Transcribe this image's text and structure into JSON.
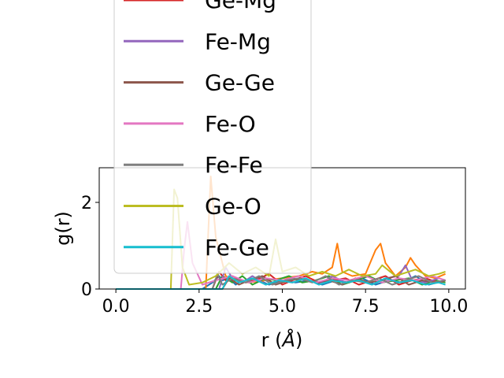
{
  "chart_data": {
    "type": "line",
    "xlabel": "r (",
    "xlabel_unit": "Å",
    "xlabel_close": ")",
    "ylabel": "g(r)",
    "xlim": [
      -0.5,
      10.5
    ],
    "ylim": [
      0,
      2.8
    ],
    "x_ticks": [
      0.0,
      2.5,
      5.0,
      7.5,
      10.0
    ],
    "x_tick_labels": [
      "0.0",
      "2.5",
      "5.0",
      "7.5",
      "10.0"
    ],
    "y_ticks": [
      0,
      2
    ],
    "y_tick_labels": [
      "0",
      "2"
    ],
    "grid": false,
    "legend_position": "upper-left, extending above plot",
    "series": [
      {
        "name": "",
        "color": "#1f77b4",
        "x": [
          0,
          2.6,
          2.9,
          3.1,
          3.2,
          3.4,
          3.6,
          3.8,
          4.0,
          4.3,
          4.6,
          5.0,
          5.4,
          5.8,
          6.2,
          6.6,
          7.0,
          7.4,
          7.8,
          8.2,
          8.6,
          9.0,
          9.4,
          9.9
        ],
        "y": [
          0,
          0,
          0.15,
          0.3,
          0.2,
          0.25,
          0.1,
          0.2,
          0.15,
          0.2,
          0.1,
          0.2,
          0.15,
          0.2,
          0.1,
          0.2,
          0.15,
          0.25,
          0.1,
          0.2,
          0.15,
          0.3,
          0.1,
          0.2
        ]
      },
      {
        "name": "",
        "color": "#ff7f0e",
        "x": [
          0,
          2.7,
          2.85,
          3.0,
          3.3,
          3.6,
          4.0,
          4.5,
          5.0,
          5.5,
          5.9,
          6.2,
          6.5,
          6.65,
          6.8,
          7.1,
          7.5,
          7.8,
          7.95,
          8.1,
          8.4,
          8.7,
          8.85,
          9.0,
          9.3,
          9.6,
          9.9
        ],
        "y": [
          0,
          0,
          2.6,
          1.2,
          0.3,
          0.2,
          0.15,
          0.2,
          0.25,
          0.3,
          0.4,
          0.35,
          0.5,
          1.05,
          0.4,
          0.3,
          0.35,
          0.9,
          1.05,
          0.6,
          0.3,
          0.5,
          0.72,
          0.55,
          0.3,
          0.25,
          0.35
        ]
      },
      {
        "name": "",
        "color": "#2ca02c",
        "x": [
          0,
          3.0,
          3.2,
          3.5,
          3.8,
          4.1,
          4.5,
          4.8,
          5.2,
          5.6,
          6.0,
          6.4,
          6.8,
          7.2,
          7.6,
          8.0,
          8.4,
          8.8,
          9.2,
          9.6,
          9.9
        ],
        "y": [
          0,
          0,
          0.3,
          0.15,
          0.3,
          0.1,
          0.25,
          0.2,
          0.3,
          0.15,
          0.2,
          0.3,
          0.1,
          0.2,
          0.3,
          0.15,
          0.2,
          0.25,
          0.1,
          0.2,
          0.15
        ]
      },
      {
        "name": "Ge-Mg",
        "color": "#d62728",
        "x": [
          0,
          2.9,
          3.1,
          3.3,
          3.5,
          3.9,
          4.2,
          4.6,
          5.0,
          5.3,
          5.7,
          6.1,
          6.5,
          6.9,
          7.3,
          7.7,
          8.1,
          8.5,
          8.9,
          9.3,
          9.7,
          9.9
        ],
        "y": [
          0,
          0,
          0.4,
          0.2,
          0.3,
          0.15,
          0.2,
          0.35,
          0.1,
          0.2,
          0.3,
          0.15,
          0.2,
          0.25,
          0.1,
          0.2,
          0.3,
          0.1,
          0.2,
          0.25,
          0.15,
          0.2
        ]
      },
      {
        "name": "Fe-Mg",
        "color": "#9467bd",
        "x": [
          0,
          3.1,
          3.3,
          3.5,
          3.8,
          4.1,
          4.5,
          4.9,
          5.3,
          5.7,
          6.1,
          6.5,
          6.9,
          7.3,
          7.7,
          8.1,
          8.5,
          8.7,
          8.9,
          9.3,
          9.7,
          9.9
        ],
        "y": [
          0,
          0,
          0.5,
          0.25,
          0.15,
          0.3,
          0.1,
          0.2,
          0.15,
          0.25,
          0.1,
          0.3,
          0.15,
          0.2,
          0.1,
          0.25,
          0.3,
          0.55,
          0.2,
          0.15,
          0.25,
          0.2
        ]
      },
      {
        "name": "Ge-Ge",
        "color": "#8c564b",
        "x": [
          0,
          3.2,
          3.4,
          3.7,
          4.0,
          4.4,
          4.8,
          5.2,
          5.6,
          6.0,
          6.4,
          6.8,
          7.2,
          7.6,
          8.0,
          8.4,
          8.8,
          9.2,
          9.6,
          9.9
        ],
        "y": [
          0,
          0,
          0.25,
          0.1,
          0.2,
          0.3,
          0.1,
          0.2,
          0.25,
          0.15,
          0.2,
          0.1,
          0.25,
          0.15,
          0.2,
          0.3,
          0.1,
          0.2,
          0.15,
          0.2
        ]
      },
      {
        "name": "Fe-O",
        "color": "#e377c2",
        "x": [
          0,
          1.95,
          2.05,
          2.15,
          2.3,
          2.6,
          3.0,
          3.5,
          4.0,
          4.5,
          5.0,
          5.5,
          6.0,
          6.5,
          7.0,
          7.5,
          8.0,
          8.5,
          9.0,
          9.5,
          9.9
        ],
        "y": [
          0,
          0,
          0.9,
          1.55,
          0.6,
          0.1,
          0.2,
          0.3,
          0.15,
          0.25,
          0.2,
          0.3,
          0.15,
          0.25,
          0.2,
          0.3,
          0.15,
          0.25,
          0.2,
          0.3,
          0.2
        ]
      },
      {
        "name": "Fe-Fe",
        "color": "#7f7f7f",
        "x": [
          0,
          2.9,
          3.05,
          3.2,
          3.5,
          3.9,
          4.3,
          4.7,
          5.1,
          5.5,
          5.9,
          6.3,
          6.7,
          7.1,
          7.5,
          7.9,
          8.3,
          8.7,
          9.1,
          9.5,
          9.9
        ],
        "y": [
          0,
          0,
          0.35,
          0.1,
          0.25,
          0.15,
          0.3,
          0.1,
          0.2,
          0.25,
          0.15,
          0.3,
          0.1,
          0.2,
          0.15,
          0.25,
          0.1,
          0.2,
          0.3,
          0.15,
          0.2
        ]
      },
      {
        "name": "Ge-O",
        "color": "#bcbd22",
        "x": [
          0,
          1.65,
          1.75,
          1.85,
          2.0,
          2.2,
          2.6,
          3.0,
          3.4,
          3.8,
          4.2,
          4.6,
          4.8,
          5.0,
          5.4,
          5.8,
          6.2,
          6.6,
          7.0,
          7.4,
          7.8,
          8.0,
          8.4,
          8.8,
          9.0,
          9.4,
          9.7,
          9.9
        ],
        "y": [
          0,
          0,
          2.3,
          2.1,
          0.5,
          0.1,
          0.15,
          0.3,
          0.6,
          0.35,
          0.5,
          0.3,
          1.15,
          0.4,
          0.5,
          0.3,
          0.4,
          0.3,
          0.45,
          0.3,
          0.35,
          0.55,
          0.3,
          0.4,
          0.45,
          0.3,
          0.35,
          0.4
        ]
      },
      {
        "name": "Fe-Ge",
        "color": "#17becf",
        "x": [
          0,
          3.2,
          3.4,
          3.7,
          4.1,
          4.5,
          4.9,
          5.3,
          5.7,
          6.1,
          6.5,
          6.9,
          7.3,
          7.7,
          8.1,
          8.5,
          8.9,
          9.3,
          9.7,
          9.9
        ],
        "y": [
          0,
          0,
          0.3,
          0.15,
          0.25,
          0.1,
          0.2,
          0.15,
          0.25,
          0.1,
          0.2,
          0.15,
          0.2,
          0.1,
          0.25,
          0.15,
          0.2,
          0.1,
          0.15,
          0.1
        ]
      }
    ]
  }
}
